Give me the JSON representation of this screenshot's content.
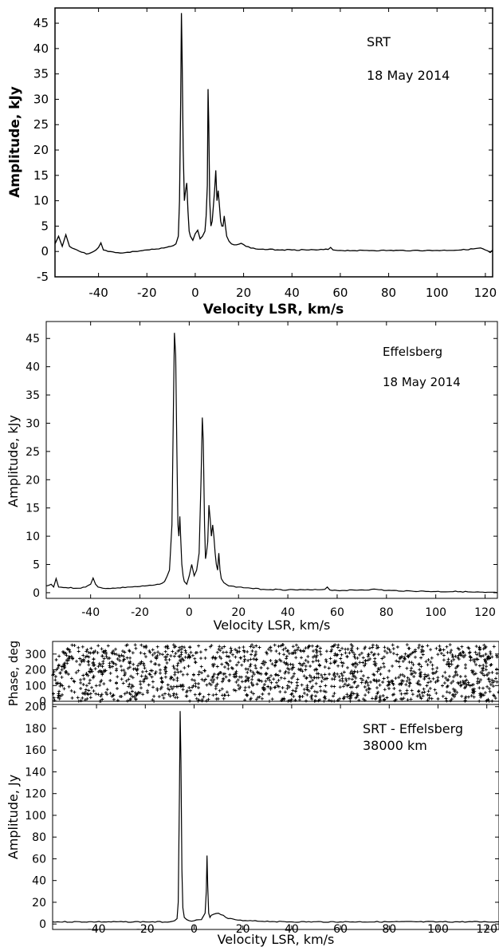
{
  "chart_data": [
    {
      "type": "line",
      "xlabel": "Velocity LSR, km/s",
      "ylabel": "Amplitude, kJy",
      "annotations": [
        "SRT",
        "18 May 2014"
      ],
      "xlim": [
        -58,
        123
      ],
      "ylim": [
        -5,
        48
      ],
      "xticks": [
        -40,
        -20,
        0,
        20,
        40,
        60,
        80,
        100,
        120
      ],
      "yticks": [
        -5,
        0,
        5,
        10,
        15,
        20,
        25,
        30,
        35,
        40,
        45
      ],
      "grid": false,
      "series": [
        {
          "x": [
            -58,
            -56.5,
            -55,
            -53.5,
            -52,
            -50,
            -45,
            -42,
            -40,
            -39,
            -38,
            -36,
            -30,
            -25,
            -20,
            -15,
            -12,
            -10,
            -8,
            -7,
            -6.5,
            -6,
            -5.7,
            -5.4,
            -5,
            -4.5,
            -4,
            -3.5,
            -3,
            -2.5,
            -2,
            -1,
            0,
            1,
            2,
            3,
            4,
            4.5,
            5,
            5.3,
            5.6,
            6,
            6.5,
            7,
            7.5,
            8,
            8.5,
            9,
            9.5,
            10,
            10.5,
            11,
            11.5,
            12,
            12.5,
            13,
            14,
            15,
            17,
            19,
            21,
            25,
            30,
            40,
            50,
            55,
            56,
            57,
            60,
            70,
            80,
            90,
            100,
            110,
            115,
            118,
            120,
            122,
            123
          ],
          "y": [
            1.5,
            3,
            1,
            3.3,
            1,
            0.5,
            -0.5,
            0,
            0.8,
            1.7,
            0.3,
            0,
            -0.3,
            0,
            0.3,
            0.5,
            0.8,
            1,
            1.5,
            3,
            10,
            30,
            47,
            38,
            20,
            10,
            12,
            13.5,
            8,
            4,
            3,
            2.2,
            3.5,
            4.2,
            2.5,
            3,
            4,
            7,
            13,
            32,
            25,
            10,
            5,
            6,
            9,
            12,
            16,
            10,
            12,
            9,
            6,
            5,
            5,
            7,
            5,
            3,
            2,
            1.5,
            1.3,
            1.6,
            1,
            0.5,
            0.4,
            0.3,
            0.3,
            0.4,
            0.8,
            0.3,
            0.2,
            0.2,
            0.2,
            0.2,
            0.2,
            0.3,
            0.5,
            0.7,
            0.3,
            -0.2,
            0.3
          ]
        }
      ]
    },
    {
      "type": "line",
      "xlabel": "Velocity LSR, km/s",
      "ylabel": "Amplitude, kJy",
      "annotations": [
        "Effelsberg",
        "18 May 2014"
      ],
      "xlim": [
        -58,
        125
      ],
      "ylim": [
        -1,
        48
      ],
      "xticks": [
        -40,
        -20,
        0,
        20,
        40,
        60,
        80,
        100,
        120
      ],
      "yticks": [
        0,
        5,
        10,
        15,
        20,
        25,
        30,
        35,
        40,
        45
      ],
      "grid": false,
      "series": [
        {
          "x": [
            -58,
            -56,
            -55,
            -54,
            -53,
            -50,
            -45,
            -42,
            -40,
            -39,
            -38,
            -37,
            -35,
            -30,
            -25,
            -20,
            -15,
            -12,
            -10,
            -8,
            -7,
            -6.5,
            -6,
            -5.5,
            -5,
            -4.6,
            -4.2,
            -3.8,
            -3.4,
            -3,
            -2.5,
            -2,
            -1,
            0,
            1,
            2,
            3,
            4,
            4.8,
            5.3,
            5.7,
            6.2,
            6.6,
            7,
            7.5,
            8,
            8.5,
            9,
            9.5,
            10,
            10.5,
            11,
            11.5,
            12,
            12.5,
            13,
            14,
            16,
            20,
            25,
            30,
            40,
            50,
            55,
            56,
            57,
            60,
            70,
            76,
            80,
            90,
            100,
            110,
            115,
            120,
            125
          ],
          "y": [
            1.2,
            1.5,
            1,
            2.5,
            1,
            0.9,
            0.8,
            1,
            1.5,
            2.6,
            1.5,
            1,
            0.8,
            0.8,
            1,
            1.1,
            1.3,
            1.5,
            2,
            4,
            12,
            30,
            46,
            42,
            25,
            12,
            10,
            13.5,
            9,
            5,
            3,
            2,
            1.5,
            3,
            5,
            3,
            4,
            7,
            20,
            31,
            27,
            12,
            6,
            7,
            9,
            15.5,
            13,
            10,
            12,
            10,
            7,
            5,
            4,
            7,
            4,
            2.5,
            1.8,
            1.2,
            1,
            0.8,
            0.6,
            0.5,
            0.5,
            0.6,
            1,
            0.5,
            0.4,
            0.5,
            0.6,
            0.4,
            0.3,
            0.2,
            0.2,
            0.1,
            0.05,
            0
          ]
        }
      ]
    },
    {
      "type": "scatter",
      "xlabel": "",
      "ylabel": "Phase, deg",
      "xlim": [
        -58,
        125
      ],
      "ylim": [
        -20,
        380
      ],
      "xticks": [
        -40,
        -20,
        0,
        20,
        40,
        60,
        80,
        100,
        120
      ],
      "yticks": [
        0,
        100,
        200,
        300
      ],
      "grid": false,
      "point_count": 1500,
      "description_values": "phase values uniformly spread 0-360 deg across the full velocity range"
    },
    {
      "type": "line",
      "xlabel": "Velocity LSR, km/s",
      "ylabel": "Amplitude, Jy",
      "annotations": [
        "SRT - Effelsberg",
        "38000 km"
      ],
      "xlim": [
        -58,
        125
      ],
      "ylim": [
        -5,
        202
      ],
      "xticks": [
        -40,
        -20,
        0,
        20,
        40,
        60,
        80,
        100,
        120
      ],
      "yticks": [
        0,
        20,
        40,
        60,
        80,
        100,
        120,
        140,
        160,
        180,
        200
      ],
      "grid": false,
      "series": [
        {
          "x": [
            -58,
            -40,
            -20,
            -10,
            -8,
            -7,
            -6.5,
            -6,
            -5.7,
            -5.4,
            -5,
            -4.6,
            -4,
            -3,
            -2,
            0,
            3,
            4.5,
            5,
            5.3,
            5.6,
            6,
            6.5,
            7,
            8,
            10,
            12,
            14,
            20,
            40,
            60,
            80,
            100,
            120,
            125
          ],
          "y": [
            2,
            2,
            2,
            2,
            3,
            5,
            20,
            120,
            196,
            150,
            50,
            15,
            6,
            4,
            3,
            3,
            4,
            10,
            30,
            63,
            35,
            10,
            6,
            8,
            9,
            10,
            8,
            5,
            3,
            2,
            2,
            2,
            2,
            2,
            2
          ]
        }
      ]
    }
  ]
}
